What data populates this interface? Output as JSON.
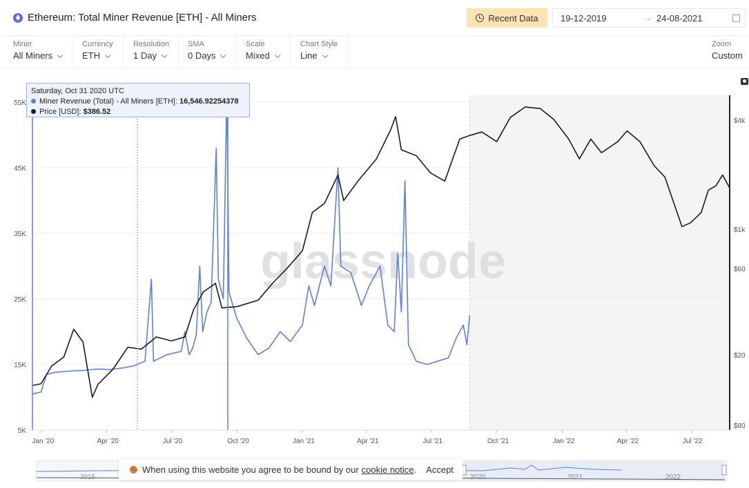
{
  "header": {
    "title": "Ethereum: Total Miner Revenue [ETH] - All Miners",
    "recent_button": "Recent Data",
    "date_start": "19-12-2019",
    "date_arrow": "→",
    "date_end": "24-08-2021",
    "icons": {
      "logo": "ethereum-icon",
      "recent": "clock-icon",
      "calendar": "calendar-icon"
    }
  },
  "toolbar": {
    "controls": [
      {
        "label": "Miner",
        "value": "All Miners"
      },
      {
        "label": "Currency",
        "value": "ETH"
      },
      {
        "label": "Resolution",
        "value": "1 Day"
      },
      {
        "label": "SMA",
        "value": "0 Days"
      },
      {
        "label": "Scale",
        "value": "Mixed"
      },
      {
        "label": "Chart Style",
        "value": "Line"
      }
    ],
    "zoom": {
      "label": "Zoom",
      "value": "Custom"
    }
  },
  "tooltip": {
    "date": "Saturday, Oct 31 2020 UTC",
    "revenue_label": "Miner Revenue (Total) - All Miners [ETH]:",
    "revenue_value": "16,546.92254378",
    "price_label": "Price [USD]:",
    "price_value": "$386.52"
  },
  "watermark": "glassnode",
  "cookie": {
    "text": "When using this website you agree to be bound by our",
    "link": "cookie notice",
    "period": ".",
    "accept": "Accept"
  },
  "navigator": {
    "labels": [
      "2016",
      "2020",
      "2021",
      "2022"
    ]
  },
  "colors": {
    "revenue": "#5b7ee5",
    "price": "#1a1a1a",
    "accent_button": "#fbe3b2",
    "shaded_region": "#f4f4f4"
  },
  "chart_data": {
    "type": "line",
    "title": "Ethereum: Total Miner Revenue [ETH] - All Miners",
    "x_ticks": [
      "Jan '20",
      "Apr '20",
      "Jul '20",
      "Oct '20",
      "Jan '21",
      "Apr '21",
      "Jul '21",
      "Oct '21",
      "Jan '22",
      "Apr '22",
      "Jul '22"
    ],
    "y_left": {
      "ticks": [
        "5K",
        "15K",
        "25K",
        "35K",
        "45K",
        "55K"
      ],
      "range": [
        5000,
        55000
      ]
    },
    "y_right": {
      "ticks": [
        "$4k",
        "$1k",
        "$60",
        "$20",
        "$80"
      ]
    },
    "x_range": [
      "2019-12-19",
      "2022-08-24"
    ],
    "shaded_from": "2021-08-24",
    "series": [
      {
        "name": "Miner Revenue (Total) - All Miners [ETH]",
        "axis": "left",
        "points": [
          [
            "2019-12-19",
            10500
          ],
          [
            "2019-12-31",
            10800
          ],
          [
            "2020-01-08",
            13500
          ],
          [
            "2020-01-20",
            13800
          ],
          [
            "2020-02-10",
            14000
          ],
          [
            "2020-03-01",
            14100
          ],
          [
            "2020-03-20",
            14300
          ],
          [
            "2020-04-05",
            14200
          ],
          [
            "2020-04-25",
            14500
          ],
          [
            "2020-05-10",
            14800
          ],
          [
            "2020-05-25",
            15500
          ],
          [
            "2020-06-03",
            28000
          ],
          [
            "2020-06-06",
            15500
          ],
          [
            "2020-06-25",
            16500
          ],
          [
            "2020-07-15",
            17000
          ],
          [
            "2020-07-20",
            20000
          ],
          [
            "2020-07-26",
            16500
          ],
          [
            "2020-07-31",
            17500
          ],
          [
            "2020-08-05",
            19500
          ],
          [
            "2020-08-10",
            30000
          ],
          [
            "2020-08-14",
            20000
          ],
          [
            "2020-08-20",
            23000
          ],
          [
            "2020-08-26",
            24500
          ],
          [
            "2020-09-02",
            48000
          ],
          [
            "2020-09-05",
            28000
          ],
          [
            "2020-09-12",
            25000
          ],
          [
            "2020-09-17",
            57000
          ],
          [
            "2020-09-20",
            26000
          ],
          [
            "2020-10-01",
            22000
          ],
          [
            "2020-10-15",
            19000
          ],
          [
            "2020-10-31",
            16500
          ],
          [
            "2020-11-15",
            17500
          ],
          [
            "2020-12-01",
            20000
          ],
          [
            "2020-12-15",
            18500
          ],
          [
            "2021-01-01",
            21000
          ],
          [
            "2021-01-10",
            27000
          ],
          [
            "2021-01-18",
            24000
          ],
          [
            "2021-02-01",
            30000
          ],
          [
            "2021-02-10",
            27000
          ],
          [
            "2021-02-20",
            45000
          ],
          [
            "2021-02-24",
            30000
          ],
          [
            "2021-03-10",
            29000
          ],
          [
            "2021-03-25",
            24000
          ],
          [
            "2021-04-05",
            27000
          ],
          [
            "2021-04-20",
            30000
          ],
          [
            "2021-05-01",
            21000
          ],
          [
            "2021-05-10",
            20000
          ],
          [
            "2021-05-15",
            32000
          ],
          [
            "2021-05-20",
            23000
          ],
          [
            "2021-05-25",
            43000
          ],
          [
            "2021-05-30",
            18000
          ],
          [
            "2021-06-10",
            15500
          ],
          [
            "2021-06-25",
            15000
          ],
          [
            "2021-07-10",
            15500
          ],
          [
            "2021-07-25",
            16000
          ],
          [
            "2021-08-05",
            19000
          ],
          [
            "2021-08-15",
            21000
          ],
          [
            "2021-08-20",
            18000
          ],
          [
            "2021-08-24",
            22500
          ]
        ]
      },
      {
        "name": "Price [USD]",
        "axis": "right",
        "points": [
          [
            "2019-12-19",
            128
          ],
          [
            "2019-12-31",
            131
          ],
          [
            "2020-01-15",
            165
          ],
          [
            "2020-02-01",
            185
          ],
          [
            "2020-02-15",
            265
          ],
          [
            "2020-02-28",
            225
          ],
          [
            "2020-03-12",
            110
          ],
          [
            "2020-03-20",
            130
          ],
          [
            "2020-04-10",
            158
          ],
          [
            "2020-05-01",
            210
          ],
          [
            "2020-05-20",
            205
          ],
          [
            "2020-06-10",
            240
          ],
          [
            "2020-07-01",
            228
          ],
          [
            "2020-07-20",
            240
          ],
          [
            "2020-08-01",
            340
          ],
          [
            "2020-08-15",
            430
          ],
          [
            "2020-09-01",
            480
          ],
          [
            "2020-09-10",
            350
          ],
          [
            "2020-10-01",
            355
          ],
          [
            "2020-10-31",
            386
          ],
          [
            "2020-11-20",
            480
          ],
          [
            "2020-12-10",
            580
          ],
          [
            "2021-01-01",
            730
          ],
          [
            "2021-01-15",
            1200
          ],
          [
            "2021-02-01",
            1350
          ],
          [
            "2021-02-20",
            1950
          ],
          [
            "2021-02-28",
            1400
          ],
          [
            "2021-03-20",
            1800
          ],
          [
            "2021-04-15",
            2400
          ],
          [
            "2021-05-05",
            3500
          ],
          [
            "2021-05-12",
            4150
          ],
          [
            "2021-05-20",
            2700
          ],
          [
            "2021-06-10",
            2500
          ],
          [
            "2021-06-30",
            2000
          ],
          [
            "2021-07-20",
            1800
          ],
          [
            "2021-08-10",
            3100
          ],
          [
            "2021-08-24",
            3250
          ],
          [
            "2021-09-10",
            3400
          ],
          [
            "2021-10-01",
            3000
          ],
          [
            "2021-10-20",
            4100
          ],
          [
            "2021-11-10",
            4700
          ],
          [
            "2021-12-01",
            4600
          ],
          [
            "2021-12-20",
            4000
          ],
          [
            "2022-01-10",
            3100
          ],
          [
            "2022-01-25",
            2400
          ],
          [
            "2022-02-10",
            3100
          ],
          [
            "2022-02-25",
            2600
          ],
          [
            "2022-03-20",
            3000
          ],
          [
            "2022-04-02",
            3450
          ],
          [
            "2022-04-20",
            3000
          ],
          [
            "2022-05-10",
            2200
          ],
          [
            "2022-05-25",
            1900
          ],
          [
            "2022-06-18",
            1000
          ],
          [
            "2022-06-30",
            1050
          ],
          [
            "2022-07-15",
            1200
          ],
          [
            "2022-07-25",
            1600
          ],
          [
            "2022-08-05",
            1700
          ],
          [
            "2022-08-14",
            1950
          ],
          [
            "2022-08-24",
            1650
          ]
        ]
      }
    ]
  }
}
